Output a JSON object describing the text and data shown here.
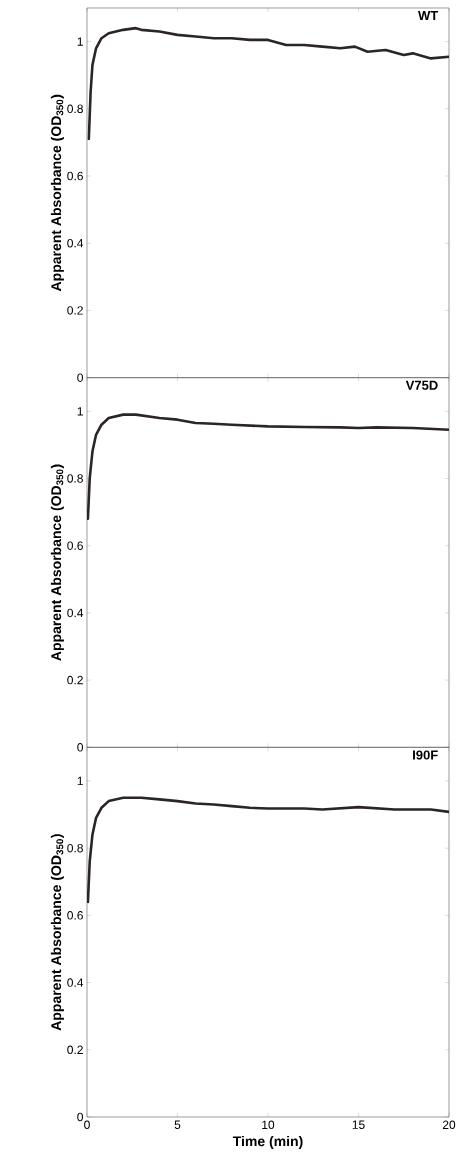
{
  "chart_data": [
    {
      "type": "line",
      "title": "WT",
      "ylabel": "Apparent Absorbance (OD$_{350}$)",
      "xlim": [
        0,
        20
      ],
      "xticks": [
        0,
        5,
        10,
        15,
        20
      ],
      "ylim": [
        0,
        1.1
      ],
      "yticks": [
        0,
        0.2,
        0.4,
        0.6,
        0.8,
        1
      ],
      "tick_labels": "y",
      "grid": false,
      "series": [
        {
          "color": "#2b2524",
          "x": [
            0.1,
            0.2,
            0.3,
            0.5,
            0.8,
            1.2,
            2,
            2.7,
            3,
            4,
            5,
            6,
            7,
            8,
            9,
            10,
            11,
            12,
            13,
            14,
            14.8,
            15.5,
            16.5,
            17.5,
            18,
            19,
            20
          ],
          "values": [
            0.71,
            0.85,
            0.93,
            0.98,
            1.01,
            1.025,
            1.035,
            1.04,
            1.035,
            1.03,
            1.02,
            1.015,
            1.01,
            1.01,
            1.005,
            1.005,
            0.99,
            0.99,
            0.985,
            0.98,
            0.985,
            0.97,
            0.975,
            0.96,
            0.965,
            0.95,
            0.955
          ]
        }
      ]
    },
    {
      "type": "line",
      "title": "V75D",
      "ylabel": "Apparent Absorbance (OD$_{350}$)",
      "xlim": [
        0,
        20
      ],
      "xticks": [
        0,
        5,
        10,
        15,
        20
      ],
      "ylim": [
        0,
        1.1
      ],
      "yticks": [
        0,
        0.2,
        0.4,
        0.6,
        0.8,
        1
      ],
      "tick_labels": "y",
      "grid": false,
      "series": [
        {
          "color": "#2b2524",
          "x": [
            0.05,
            0.15,
            0.3,
            0.5,
            0.8,
            1.2,
            2,
            2.7,
            4,
            5,
            6,
            7,
            8,
            10,
            12,
            14,
            15,
            16,
            18,
            20
          ],
          "values": [
            0.68,
            0.8,
            0.88,
            0.93,
            0.96,
            0.98,
            0.99,
            0.99,
            0.98,
            0.975,
            0.965,
            0.963,
            0.96,
            0.955,
            0.953,
            0.952,
            0.95,
            0.952,
            0.95,
            0.945
          ]
        }
      ]
    },
    {
      "type": "line",
      "title": "I90F",
      "ylabel": "Apparent Absorbance (OD$_{350}$)",
      "xlabel": "Time (min)",
      "xlim": [
        0,
        20
      ],
      "xticks": [
        0,
        5,
        10,
        15,
        20
      ],
      "ylim": [
        0,
        1.1
      ],
      "yticks": [
        0,
        0.2,
        0.4,
        0.6,
        0.8,
        1
      ],
      "grid": false,
      "series": [
        {
          "color": "#2b2524",
          "x": [
            0.05,
            0.15,
            0.3,
            0.5,
            0.8,
            1.2,
            2,
            3,
            4,
            5,
            6,
            7,
            8,
            9,
            10,
            12,
            13,
            15,
            17,
            19,
            20
          ],
          "values": [
            0.64,
            0.76,
            0.84,
            0.89,
            0.92,
            0.94,
            0.95,
            0.95,
            0.945,
            0.94,
            0.933,
            0.93,
            0.925,
            0.92,
            0.918,
            0.918,
            0.915,
            0.922,
            0.915,
            0.915,
            0.908
          ]
        }
      ]
    }
  ]
}
